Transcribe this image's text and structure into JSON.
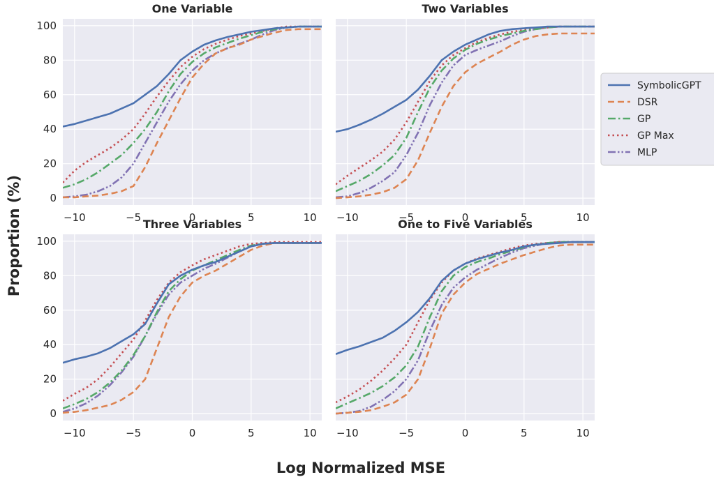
{
  "xlabel": "Log Normalized MSE",
  "ylabel": "Proportion (%)",
  "legend": {
    "placement": "right",
    "entries": [
      {
        "label": "SymbolicGPT",
        "color": "#4c72b0",
        "style": "solid"
      },
      {
        "label": "DSR",
        "color": "#dd8452",
        "style": "dashed"
      },
      {
        "label": "GP",
        "color": "#55a868",
        "style": "dashdot"
      },
      {
        "label": "GP Max",
        "color": "#c44e52",
        "style": "dotted"
      },
      {
        "label": "MLP",
        "color": "#8172b3",
        "style": "dashdotdot"
      }
    ]
  },
  "chart_data": [
    {
      "type": "line",
      "title": "One Variable",
      "xlim": [
        -11,
        11
      ],
      "ylim": [
        -4,
        104
      ],
      "xticks": [
        -10,
        -5,
        0,
        5,
        10
      ],
      "yticks": [
        0,
        20,
        40,
        60,
        80,
        100
      ],
      "grid": true,
      "series": [
        {
          "name": "SymbolicGPT",
          "x": [
            -11,
            -10,
            -9,
            -8,
            -7,
            -6,
            -5,
            -4,
            -3,
            -2,
            -1,
            0,
            1,
            2,
            3,
            4,
            5,
            6,
            7,
            8,
            9,
            10,
            11
          ],
          "y": [
            41.5,
            43,
            45,
            47,
            49,
            52,
            55,
            60,
            65,
            72,
            80,
            85,
            89,
            91.5,
            93.5,
            95,
            96.5,
            97.5,
            98.5,
            99,
            99.5,
            99.5,
            99.5
          ]
        },
        {
          "name": "DSR",
          "x": [
            -11,
            -10,
            -9,
            -8,
            -7,
            -6,
            -5,
            -4,
            -3,
            -2,
            -1,
            0,
            1,
            2,
            3,
            4,
            5,
            6,
            7,
            8,
            9,
            10,
            11
          ],
          "y": [
            0.5,
            0.5,
            1,
            1.5,
            2.5,
            4,
            7,
            18,
            32,
            45,
            58,
            70,
            78,
            84,
            87,
            89,
            92,
            94,
            96,
            97.5,
            98,
            98,
            98
          ]
        },
        {
          "name": "GP",
          "x": [
            -11,
            -10,
            -9,
            -8,
            -7,
            -6,
            -5,
            -4,
            -3,
            -2,
            -1,
            0,
            1,
            2,
            3,
            4,
            5,
            6,
            7,
            8,
            9,
            10,
            11
          ],
          "y": [
            6,
            8,
            11,
            15,
            20,
            25,
            32,
            40,
            50,
            62,
            72,
            79,
            84,
            87.5,
            90,
            92.5,
            94.5,
            96.5,
            98,
            99,
            99.5,
            99.5,
            99.5
          ]
        },
        {
          "name": "GP Max",
          "x": [
            -11,
            -10,
            -9,
            -8,
            -7,
            -6,
            -5,
            -4,
            -3,
            -2,
            -1,
            0,
            1,
            2,
            3,
            4,
            5,
            6,
            7,
            8,
            9,
            10,
            11
          ],
          "y": [
            9,
            16,
            21,
            25,
            29,
            34,
            40,
            49,
            59,
            68,
            76,
            82,
            86.5,
            89.5,
            92,
            94,
            95.5,
            97,
            98.5,
            99.5,
            99.5,
            99.5,
            99.5
          ]
        },
        {
          "name": "MLP",
          "x": [
            -11,
            -10,
            -9,
            -8,
            -7,
            -6,
            -5,
            -4,
            -3,
            -2,
            -1,
            0,
            1,
            2,
            3,
            4,
            5,
            6,
            7,
            8,
            9,
            10,
            11
          ],
          "y": [
            0.5,
            1,
            2,
            4,
            7,
            12,
            20,
            32,
            44,
            56,
            66,
            74,
            80,
            84,
            87,
            89.5,
            92,
            95,
            97.5,
            99,
            99.5,
            99.5,
            99.5
          ]
        }
      ]
    },
    {
      "type": "line",
      "title": "Two Variables",
      "xlim": [
        -11,
        11
      ],
      "ylim": [
        -4,
        104
      ],
      "xticks": [
        -10,
        -5,
        0,
        5,
        10
      ],
      "yticks": [
        0,
        20,
        40,
        60,
        80,
        100
      ],
      "grid": true,
      "series": [
        {
          "name": "SymbolicGPT",
          "x": [
            -11,
            -10,
            -9,
            -8,
            -7,
            -6,
            -5,
            -4,
            -3,
            -2,
            -1,
            0,
            1,
            2,
            3,
            4,
            5,
            6,
            7,
            8,
            9,
            10,
            11
          ],
          "y": [
            38.5,
            40,
            42.5,
            45.5,
            49,
            53,
            57,
            63,
            71,
            80,
            85,
            89,
            92,
            95,
            97,
            98,
            98.5,
            99,
            99.5,
            99.5,
            99.5,
            99.5,
            99.5
          ]
        },
        {
          "name": "DSR",
          "x": [
            -11,
            -10,
            -9,
            -8,
            -7,
            -6,
            -5,
            -4,
            -3,
            -2,
            -1,
            0,
            1,
            2,
            3,
            4,
            5,
            6,
            7,
            8,
            9,
            10,
            11
          ],
          "y": [
            0,
            0.5,
            1,
            2,
            3.5,
            6,
            11,
            22,
            38,
            53,
            65,
            73,
            78,
            81.5,
            85,
            89,
            92,
            94,
            95,
            95.5,
            95.5,
            95.5,
            95.5
          ]
        },
        {
          "name": "GP",
          "x": [
            -11,
            -10,
            -9,
            -8,
            -7,
            -6,
            -5,
            -4,
            -3,
            -2,
            -1,
            0,
            1,
            2,
            3,
            4,
            5,
            6,
            7,
            8,
            9,
            10,
            11
          ],
          "y": [
            4,
            7,
            10,
            14,
            19,
            25,
            35,
            50,
            64,
            74,
            81,
            86,
            89.5,
            92,
            94,
            95.5,
            97,
            98,
            99,
            99.5,
            99.5,
            99.5,
            99.5
          ]
        },
        {
          "name": "GP Max",
          "x": [
            -11,
            -10,
            -9,
            -8,
            -7,
            -6,
            -5,
            -4,
            -3,
            -2,
            -1,
            0,
            1,
            2,
            3,
            4,
            5,
            6,
            7,
            8,
            9,
            10,
            11
          ],
          "y": [
            8,
            13,
            17.5,
            22,
            27,
            34,
            44,
            56,
            68,
            77,
            83,
            87,
            90.5,
            93,
            95,
            96.5,
            97.5,
            98.5,
            99,
            99.5,
            99.5,
            99.5,
            99.5
          ]
        },
        {
          "name": "MLP",
          "x": [
            -11,
            -10,
            -9,
            -8,
            -7,
            -6,
            -5,
            -4,
            -3,
            -2,
            -1,
            0,
            1,
            2,
            3,
            4,
            5,
            6,
            7,
            8,
            9,
            10,
            11
          ],
          "y": [
            0.5,
            1,
            3,
            6,
            10,
            15,
            25,
            38,
            54,
            67,
            77,
            83,
            86,
            88.5,
            91,
            94,
            96.5,
            98,
            99,
            99.5,
            99.5,
            99.5,
            99.5
          ]
        }
      ]
    },
    {
      "type": "line",
      "title": "Three Variables",
      "xlim": [
        -11,
        11
      ],
      "ylim": [
        -4,
        104
      ],
      "xticks": [
        -10,
        -5,
        0,
        5,
        10
      ],
      "yticks": [
        0,
        20,
        40,
        60,
        80,
        100
      ],
      "grid": true,
      "series": [
        {
          "name": "SymbolicGPT",
          "x": [
            -11,
            -10,
            -9,
            -8,
            -7,
            -6,
            -5,
            -4,
            -3,
            -2,
            -1,
            0,
            1,
            2,
            3,
            4,
            5,
            6,
            7,
            8,
            9,
            10,
            11
          ],
          "y": [
            29.5,
            31.5,
            33,
            35,
            38,
            42,
            46,
            52,
            64,
            75,
            80,
            83.5,
            86,
            88,
            91,
            94,
            97,
            98.5,
            99,
            99,
            99,
            99,
            99
          ]
        },
        {
          "name": "DSR",
          "x": [
            -11,
            -10,
            -9,
            -8,
            -7,
            -6,
            -5,
            -4,
            -3,
            -2,
            -1,
            0,
            1,
            2,
            3,
            4,
            5,
            6,
            7,
            8,
            9,
            10,
            11
          ],
          "y": [
            0.5,
            1,
            2,
            3.5,
            5,
            8,
            12.5,
            20,
            38,
            56,
            68,
            76,
            80,
            83,
            87,
            91,
            95,
            97.5,
            99,
            99,
            99,
            99,
            99
          ]
        },
        {
          "name": "GP",
          "x": [
            -11,
            -10,
            -9,
            -8,
            -7,
            -6,
            -5,
            -4,
            -3,
            -2,
            -1,
            0,
            1,
            2,
            3,
            4,
            5,
            6,
            7,
            8,
            9,
            10,
            11
          ],
          "y": [
            3,
            5.5,
            8.5,
            12.5,
            18,
            25,
            34,
            45,
            59,
            71,
            78,
            83,
            86,
            89,
            92,
            95,
            97.5,
            98.5,
            99,
            99,
            99,
            99,
            99
          ]
        },
        {
          "name": "GP Max",
          "x": [
            -11,
            -10,
            -9,
            -8,
            -7,
            -6,
            -5,
            -4,
            -3,
            -2,
            -1,
            0,
            1,
            2,
            3,
            4,
            5,
            6,
            7,
            8,
            9,
            10,
            11
          ],
          "y": [
            7.5,
            11.5,
            15,
            20,
            27,
            35,
            43,
            54,
            66,
            76,
            82,
            86,
            89.5,
            92,
            94.5,
            97,
            98.5,
            99,
            99.5,
            99.5,
            99.5,
            99.5,
            99.5
          ]
        },
        {
          "name": "MLP",
          "x": [
            -11,
            -10,
            -9,
            -8,
            -7,
            -6,
            -5,
            -4,
            -3,
            -2,
            -1,
            0,
            1,
            2,
            3,
            4,
            5,
            6,
            7,
            8,
            9,
            10,
            11
          ],
          "y": [
            1,
            3,
            6,
            10.5,
            16.5,
            24,
            33,
            45,
            58,
            69,
            76,
            80,
            84,
            87,
            90.5,
            94,
            97,
            98.5,
            99,
            99,
            99,
            99,
            99
          ]
        }
      ]
    },
    {
      "type": "line",
      "title": "One to Five Variables",
      "xlim": [
        -11,
        11
      ],
      "ylim": [
        -4,
        104
      ],
      "xticks": [
        -10,
        -5,
        0,
        5,
        10
      ],
      "yticks": [
        0,
        20,
        40,
        60,
        80,
        100
      ],
      "grid": true,
      "series": [
        {
          "name": "SymbolicGPT",
          "x": [
            -11,
            -10,
            -9,
            -8,
            -7,
            -6,
            -5,
            -4,
            -3,
            -2,
            -1,
            0,
            1,
            2,
            3,
            4,
            5,
            6,
            7,
            8,
            9,
            10,
            11
          ],
          "y": [
            34.5,
            37,
            39,
            41.5,
            44,
            48,
            53,
            59,
            67,
            77,
            83,
            87,
            89.5,
            91.5,
            93.5,
            95,
            97,
            98,
            98.5,
            99,
            99.5,
            99.5,
            99.5
          ]
        },
        {
          "name": "DSR",
          "x": [
            -11,
            -10,
            -9,
            -8,
            -7,
            -6,
            -5,
            -4,
            -3,
            -2,
            -1,
            0,
            1,
            2,
            3,
            4,
            5,
            6,
            7,
            8,
            9,
            10,
            11
          ],
          "y": [
            0,
            0.5,
            1,
            2,
            4,
            6.5,
            11,
            20,
            38,
            58,
            69,
            76,
            81,
            84,
            87,
            89.5,
            92,
            94,
            96,
            97.5,
            98,
            98,
            98
          ]
        },
        {
          "name": "GP",
          "x": [
            -11,
            -10,
            -9,
            -8,
            -7,
            -6,
            -5,
            -4,
            -3,
            -2,
            -1,
            0,
            1,
            2,
            3,
            4,
            5,
            6,
            7,
            8,
            9,
            10,
            11
          ],
          "y": [
            3,
            6,
            9,
            12,
            16,
            21,
            28,
            39,
            56,
            71,
            80,
            85,
            88,
            90,
            92.5,
            94.5,
            96.5,
            98,
            99,
            99.5,
            99.5,
            99.5,
            99.5
          ]
        },
        {
          "name": "GP Max",
          "x": [
            -11,
            -10,
            -9,
            -8,
            -7,
            -6,
            -5,
            -4,
            -3,
            -2,
            -1,
            0,
            1,
            2,
            3,
            4,
            5,
            6,
            7,
            8,
            9,
            10,
            11
          ],
          "y": [
            6.5,
            10,
            14,
            19,
            25,
            32,
            40,
            53,
            66,
            76,
            83,
            87,
            90,
            92,
            94,
            96,
            97.5,
            98.5,
            99,
            99.5,
            99.5,
            99.5,
            99.5
          ]
        },
        {
          "name": "MLP",
          "x": [
            -11,
            -10,
            -9,
            -8,
            -7,
            -6,
            -5,
            -4,
            -3,
            -2,
            -1,
            0,
            1,
            2,
            3,
            4,
            5,
            6,
            7,
            8,
            9,
            10,
            11
          ],
          "y": [
            0,
            0.5,
            1.5,
            4,
            8,
            13,
            20,
            31,
            48,
            63,
            73,
            79,
            83.5,
            87,
            90.5,
            93.5,
            96,
            97.5,
            99,
            99.5,
            99.5,
            99.5,
            99.5
          ]
        }
      ]
    }
  ]
}
